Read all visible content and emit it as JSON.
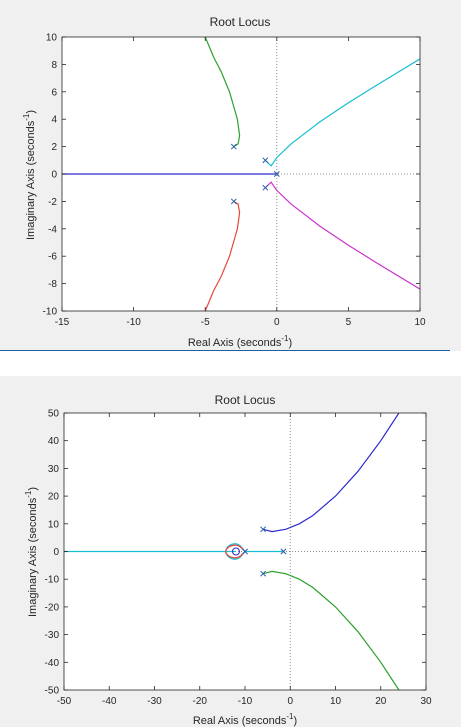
{
  "charts": [
    {
      "title": "Root Locus",
      "xlabel": "Real Axis (seconds",
      "xlabel_sup": "-1",
      "xlabel_end": ")",
      "ylabel": "Imaginary Axis (seconds",
      "ylabel_sup": "-1",
      "ylabel_end": ")"
    },
    {
      "title": "Root Locus",
      "xlabel": "Real Axis (seconds",
      "xlabel_sup": "-1",
      "xlabel_end": ")",
      "ylabel": "Imaginary Axis (seconds",
      "ylabel_sup": "-1",
      "ylabel_end": ")"
    }
  ],
  "chart_data": [
    {
      "type": "line",
      "title": "Root Locus",
      "xlabel": "Real Axis (seconds-1)",
      "ylabel": "Imaginary Axis (seconds-1)",
      "xlim": [
        -15,
        10
      ],
      "ylim": [
        -10,
        10
      ],
      "xticks": [
        -15,
        -10,
        -5,
        0,
        5,
        10
      ],
      "yticks": [
        -10,
        -8,
        -6,
        -4,
        -2,
        0,
        2,
        4,
        6,
        8,
        10
      ],
      "grid": false,
      "reference_lines": "dotted at x=0 and y=0",
      "poles": [
        [
          -3,
          2
        ],
        [
          -3,
          -2
        ],
        [
          -0.8,
          1
        ],
        [
          -0.8,
          -1
        ],
        [
          0,
          0
        ]
      ],
      "zeros": [],
      "series": [
        {
          "color": "#2b2bcc",
          "x": [
            -15,
            -0.1
          ],
          "y": [
            0,
            0
          ]
        },
        {
          "color": "#2ca02c",
          "x": [
            -3,
            -2.7,
            -2.6,
            -2.75,
            -3.3,
            -3.9,
            -4.4,
            -4.8,
            -5.0
          ],
          "y": [
            2,
            2.2,
            2.8,
            4,
            6,
            7.5,
            8.5,
            9.5,
            10
          ]
        },
        {
          "color": "#e8453c",
          "x": [
            -3,
            -2.7,
            -2.6,
            -2.75,
            -3.3,
            -3.9,
            -4.4,
            -4.8,
            -5.0
          ],
          "y": [
            -2,
            -2.2,
            -2.8,
            -4,
            -6,
            -7.5,
            -8.5,
            -9.5,
            -10
          ]
        },
        {
          "color": "#17becf",
          "x": [
            -0.8,
            -0.4,
            0,
            1,
            3,
            5,
            7,
            10
          ],
          "y": [
            1,
            0.6,
            1.2,
            2.2,
            3.8,
            5.2,
            6.5,
            8.4
          ]
        },
        {
          "color": "#cc33cc",
          "x": [
            -0.8,
            -0.4,
            0,
            1,
            3,
            5,
            7,
            10
          ],
          "y": [
            -1,
            -0.6,
            -1.2,
            -2.2,
            -3.8,
            -5.2,
            -6.5,
            -8.4
          ]
        }
      ]
    },
    {
      "type": "line",
      "title": "Root Locus",
      "xlabel": "Real Axis (seconds-1)",
      "ylabel": "Imaginary Axis (seconds-1)",
      "xlim": [
        -50,
        30
      ],
      "ylim": [
        -50,
        50
      ],
      "xticks": [
        -50,
        -40,
        -30,
        -20,
        -10,
        0,
        10,
        20,
        30
      ],
      "yticks": [
        -50,
        -40,
        -30,
        -20,
        -10,
        0,
        10,
        20,
        30,
        40,
        50
      ],
      "grid": false,
      "reference_lines": "dotted at x=0 and y=0",
      "poles": [
        [
          -6,
          8
        ],
        [
          -6,
          -8
        ],
        [
          -10,
          0
        ],
        [
          -1.5,
          0
        ]
      ],
      "zeros": [
        [
          -12,
          0
        ]
      ],
      "series": [
        {
          "color": "#17becf",
          "x": [
            -50,
            -12
          ],
          "y": [
            0,
            0
          ]
        },
        {
          "color": "#17becf",
          "x": [
            -1.5,
            -10
          ],
          "y": [
            0,
            0
          ]
        },
        {
          "color": "#17becf",
          "loop": "lower",
          "x": [
            -10,
            -11.5,
            -13.5,
            -14.5,
            -13.5,
            -11.5,
            -10
          ],
          "y": [
            0,
            3,
            2.5,
            0,
            -2.5,
            -3,
            0
          ]
        },
        {
          "color": "#e8453c",
          "loop": "upper",
          "x": [
            -10,
            -11.5,
            -13.5,
            -14.5,
            -13.5,
            -11.5,
            -10
          ],
          "y": [
            0,
            2.5,
            2.0,
            0,
            -2.0,
            -2.5,
            0
          ]
        },
        {
          "color": "#2b2bcc",
          "x": [
            -6,
            -4,
            -1,
            2,
            5,
            10,
            15,
            20,
            24
          ],
          "y": [
            8,
            7.2,
            8,
            10,
            13,
            20,
            29,
            40,
            50
          ]
        },
        {
          "color": "#2ca02c",
          "x": [
            -6,
            -4,
            -1,
            2,
            5,
            10,
            15,
            20,
            24
          ],
          "y": [
            -8,
            -7.2,
            -8,
            -10,
            -13,
            -20,
            -29,
            -40,
            -50
          ]
        }
      ]
    }
  ]
}
